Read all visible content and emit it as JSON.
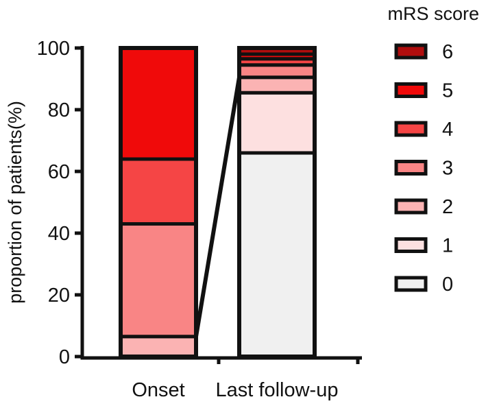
{
  "chart_data": {
    "type": "stacked-bar",
    "title": "",
    "xlabel": "",
    "ylabel": "proportion of patients(%)",
    "ylim": [
      0,
      100
    ],
    "yticks": [
      0,
      20,
      40,
      60,
      80,
      100
    ],
    "categories": [
      "Onset",
      "Last follow-up"
    ],
    "legend_title": "mRS score",
    "legend_position": "right",
    "series": [
      {
        "name": "0",
        "color": "#f0f0f0",
        "values": [
          0,
          66
        ]
      },
      {
        "name": "1",
        "color": "#fde0e0",
        "values": [
          0,
          19.5
        ]
      },
      {
        "name": "2",
        "color": "#fbb3b3",
        "values": [
          6.5,
          5
        ]
      },
      {
        "name": "3",
        "color": "#f98585",
        "values": [
          36.5,
          4
        ]
      },
      {
        "name": "4",
        "color": "#f54545",
        "values": [
          21,
          2
        ]
      },
      {
        "name": "5",
        "color": "#f00a0a",
        "values": [
          36,
          1.5
        ]
      },
      {
        "name": "6",
        "color": "#b00d0d",
        "values": [
          0,
          2
        ]
      }
    ],
    "connector": {
      "from_category": "Onset",
      "from_value": 6.5,
      "to_category": "Last follow-up",
      "to_value": 90.5
    }
  }
}
